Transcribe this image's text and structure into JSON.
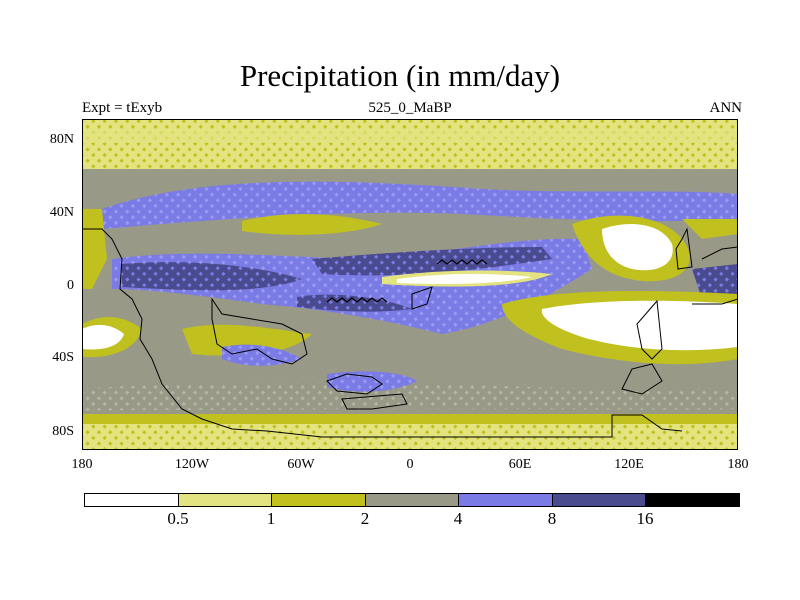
{
  "title": "Precipitation (in mm/day)",
  "subtitle_left": "Expt = tExyb",
  "subtitle_center": "525_0_MaBP",
  "subtitle_right": "ANN",
  "lat_ticks": [
    "80N",
    "40N",
    "0",
    "40S",
    "80S"
  ],
  "lon_ticks": [
    "180",
    "120W",
    "60W",
    "0",
    "60E",
    "120E",
    "180"
  ],
  "colorbar": {
    "colors": [
      "#ffffff",
      "#e3e380",
      "#c0c01f",
      "#999988",
      "#7b7be6",
      "#4a4a8e",
      "#000000"
    ],
    "labels": [
      "0.5",
      "1",
      "2",
      "4",
      "8",
      "16"
    ]
  },
  "colors": {
    "background": "#999988",
    "hatch_light": "#cacab5",
    "coastline": "#000000"
  }
}
